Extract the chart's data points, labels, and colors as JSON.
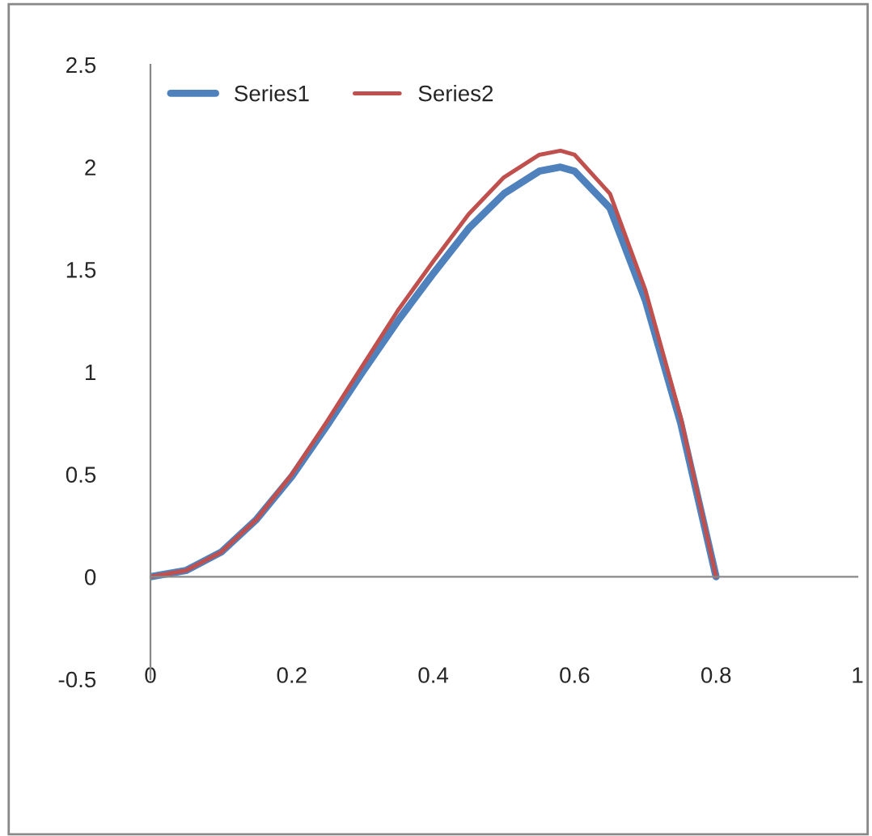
{
  "chart_data": {
    "type": "line",
    "x": [
      0,
      0.05,
      0.1,
      0.15,
      0.2,
      0.25,
      0.3,
      0.35,
      0.4,
      0.45,
      0.5,
      0.55,
      0.58,
      0.6,
      0.65,
      0.7,
      0.75,
      0.8
    ],
    "series": [
      {
        "name": "Series1",
        "color": "#4f81bd",
        "values": [
          0,
          0.03,
          0.12,
          0.28,
          0.49,
          0.74,
          1.0,
          1.25,
          1.48,
          1.7,
          1.87,
          1.98,
          2.0,
          1.98,
          1.8,
          1.35,
          0.75,
          0
        ]
      },
      {
        "name": "Series2",
        "color": "#c0504d",
        "values": [
          0,
          0.03,
          0.12,
          0.28,
          0.5,
          0.76,
          1.03,
          1.3,
          1.54,
          1.77,
          1.95,
          2.06,
          2.08,
          2.06,
          1.87,
          1.4,
          0.78,
          0
        ]
      }
    ],
    "xlim": [
      0,
      1
    ],
    "xticks": [
      0,
      0.2,
      0.4,
      0.6,
      0.8,
      1
    ],
    "ylim": [
      -0.5,
      2.5
    ],
    "yticks": [
      -0.5,
      0,
      0.5,
      1,
      1.5,
      2,
      2.5
    ],
    "legend": "top left",
    "marker": "none",
    "line_style": "solid"
  }
}
